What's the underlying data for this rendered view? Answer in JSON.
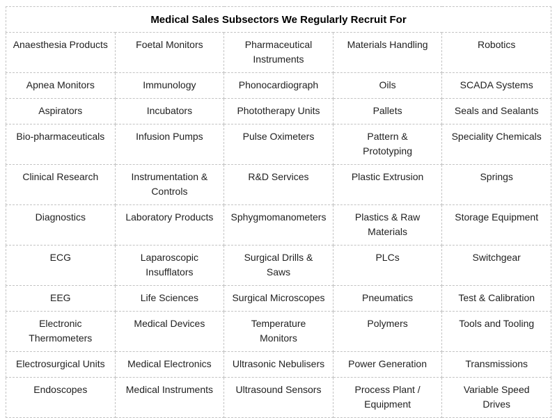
{
  "title": "Medical Sales Subsectors We Regularly Recruit For",
  "table": {
    "columns": 5,
    "rows": [
      [
        "Anaesthesia Products",
        "Foetal Monitors",
        "Pharmaceutical\nInstruments",
        "Materials Handling",
        "Robotics"
      ],
      [
        "Apnea Monitors",
        "Immunology",
        "Phonocardiograph",
        "Oils",
        "SCADA Systems"
      ],
      [
        "Aspirators",
        "Incubators",
        "Phototherapy Units",
        "Pallets",
        "Seals and Sealants"
      ],
      [
        "Bio-pharmaceuticals",
        "Infusion Pumps",
        "Pulse Oximeters",
        "Pattern &\nPrototyping",
        "Speciality Chemicals"
      ],
      [
        "Clinical Research",
        "Instrumentation &\nControls",
        "R&D Services",
        "Plastic Extrusion",
        "Springs"
      ],
      [
        "Diagnostics",
        "Laboratory Products",
        "Sphygmomanometers",
        "Plastics & Raw\nMaterials",
        "Storage Equipment"
      ],
      [
        "ECG",
        "Laparoscopic\nInsufflators",
        "Surgical Drills &\nSaws",
        "PLCs",
        "Switchgear"
      ],
      [
        "EEG",
        "Life Sciences",
        "Surgical Microscopes",
        "Pneumatics",
        "Test & Calibration"
      ],
      [
        "Electronic\nThermometers",
        "Medical Devices",
        "Temperature\nMonitors",
        "Polymers",
        "Tools and Tooling"
      ],
      [
        "Electrosurgical Units",
        "Medical Electronics",
        "Ultrasonic Nebulisers",
        "Power Generation",
        "Transmissions"
      ],
      [
        "Endoscopes",
        "Medical Instruments",
        "Ultrasound Sensors",
        "Process Plant /\nEquipment",
        "Variable Speed\nDrives"
      ]
    ]
  },
  "colors": {
    "border": "#c3c3c3",
    "text": "#1f1f1f",
    "title_text": "#000000",
    "background": "#ffffff"
  }
}
